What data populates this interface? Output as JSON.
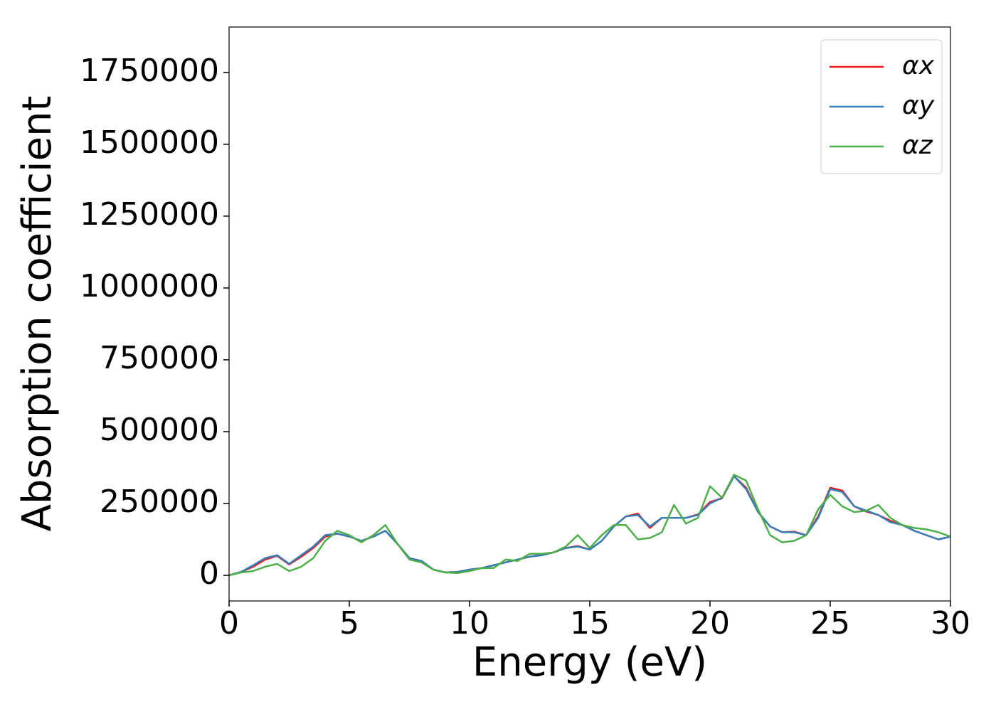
{
  "chart_data": {
    "type": "line",
    "xlabel": "Energy (eV)",
    "ylabel": "Absorption coefficient",
    "x": [
      0,
      0.5,
      1,
      1.5,
      2,
      2.5,
      3,
      3.5,
      4,
      4.5,
      5,
      5.5,
      6,
      6.5,
      7,
      7.5,
      8,
      8.5,
      9,
      9.5,
      10,
      10.5,
      11,
      11.5,
      12,
      12.5,
      13,
      13.5,
      14,
      14.5,
      15,
      15.5,
      16,
      16.5,
      17,
      17.5,
      18,
      18.5,
      19,
      19.5,
      20,
      20.5,
      21,
      21.5,
      22,
      22.5,
      23,
      23.5,
      24,
      24.5,
      25,
      25.5,
      26,
      26.5,
      27,
      27.5,
      28,
      28.5,
      29,
      29.5,
      30
    ],
    "series": [
      {
        "name": "αx",
        "color": "#e41a1c",
        "values": [
          0,
          12000,
          30000,
          55000,
          68000,
          38000,
          65000,
          95000,
          135000,
          145000,
          135000,
          120000,
          135000,
          155000,
          110000,
          60000,
          50000,
          20000,
          10000,
          12000,
          20000,
          25000,
          35000,
          45000,
          55000,
          65000,
          70000,
          80000,
          95000,
          102000,
          90000,
          120000,
          170000,
          205000,
          215000,
          165000,
          200000,
          200000,
          200000,
          212000,
          255000,
          268000,
          345000,
          305000,
          220000,
          170000,
          150000,
          152000,
          140000,
          205000,
          305000,
          295000,
          240000,
          222000,
          210000,
          190000,
          175000,
          155000,
          140000,
          125000,
          135000
        ]
      },
      {
        "name": "αy",
        "color": "#377eb8",
        "values": [
          0,
          12000,
          35000,
          60000,
          70000,
          40000,
          70000,
          100000,
          140000,
          145000,
          135000,
          120000,
          135000,
          155000,
          110000,
          60000,
          50000,
          20000,
          10000,
          12000,
          20000,
          25000,
          35000,
          45000,
          55000,
          65000,
          70000,
          80000,
          95000,
          100000,
          90000,
          120000,
          170000,
          205000,
          210000,
          170000,
          200000,
          200000,
          200000,
          210000,
          250000,
          270000,
          345000,
          300000,
          220000,
          170000,
          150000,
          150000,
          140000,
          200000,
          300000,
          290000,
          240000,
          225000,
          210000,
          185000,
          175000,
          155000,
          140000,
          125000,
          135000
        ]
      },
      {
        "name": "αz",
        "color": "#4daf4a",
        "values": [
          0,
          10000,
          15000,
          30000,
          40000,
          15000,
          30000,
          60000,
          120000,
          155000,
          140000,
          115000,
          140000,
          175000,
          110000,
          55000,
          45000,
          20000,
          10000,
          8000,
          15000,
          25000,
          25000,
          55000,
          50000,
          75000,
          75000,
          80000,
          100000,
          140000,
          95000,
          140000,
          175000,
          175000,
          125000,
          130000,
          150000,
          245000,
          180000,
          200000,
          310000,
          270000,
          350000,
          330000,
          230000,
          140000,
          115000,
          120000,
          140000,
          230000,
          280000,
          240000,
          220000,
          225000,
          245000,
          200000,
          175000,
          165000,
          160000,
          150000,
          135000
        ]
      }
    ],
    "xlim": [
      0,
      30
    ],
    "ylim": [
      -89000,
      1908000
    ],
    "xticks": [
      0,
      5,
      10,
      15,
      20,
      25,
      30
    ],
    "yticks": [
      0,
      250000,
      500000,
      750000,
      1000000,
      1250000,
      1500000,
      1750000
    ],
    "legend": "upper right"
  }
}
